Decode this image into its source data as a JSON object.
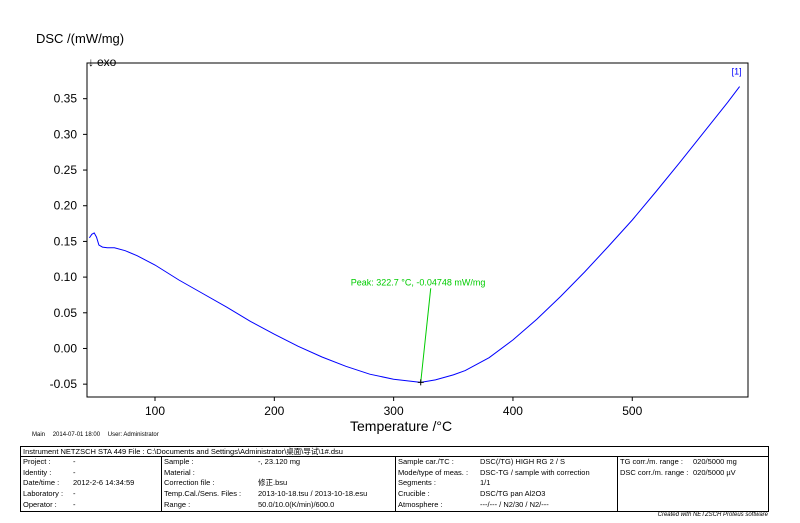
{
  "chart_data": {
    "type": "line",
    "title": "",
    "ylabel": "DSC /(mW/mg)",
    "ylabel_sub": "exo",
    "ylabel_arrow": "↓",
    "xlabel": "Temperature /°C",
    "xlim": [
      43,
      597
    ],
    "ylim": [
      -0.068,
      0.4
    ],
    "x_ticks": [
      100,
      200,
      300,
      400,
      500
    ],
    "x_tick_labels": [
      "100",
      "200",
      "300",
      "400",
      "500"
    ],
    "y_ticks": [
      -0.05,
      0.0,
      0.05,
      0.1,
      0.15,
      0.2,
      0.25,
      0.3,
      0.35
    ],
    "y_tick_labels": [
      "-0.05",
      "0.00",
      "0.05",
      "0.10",
      "0.15",
      "0.20",
      "0.25",
      "0.30",
      "0.35"
    ],
    "grid": false,
    "series": [
      {
        "color": "#0000ff",
        "x": [
          45,
          47,
          49,
          51,
          53,
          56,
          60,
          66,
          75,
          85,
          100,
          120,
          140,
          160,
          180,
          200,
          220,
          240,
          260,
          280,
          300,
          310,
          322.7,
          335,
          350,
          360,
          380,
          400,
          420,
          440,
          460,
          480,
          500,
          520,
          540,
          560,
          580,
          590
        ],
        "y": [
          0.155,
          0.16,
          0.162,
          0.156,
          0.145,
          0.142,
          0.141,
          0.141,
          0.137,
          0.13,
          0.117,
          0.096,
          0.077,
          0.058,
          0.038,
          0.02,
          0.003,
          -0.012,
          -0.025,
          -0.036,
          -0.043,
          -0.045,
          -0.04748,
          -0.044,
          -0.037,
          -0.031,
          -0.013,
          0.012,
          0.041,
          0.073,
          0.107,
          0.143,
          0.18,
          0.22,
          0.261,
          0.303,
          0.345,
          0.367
        ]
      }
    ],
    "end_label": "[1]",
    "annotation": {
      "text": "Peak: 322.7 °C, -0.04748 mW/mg",
      "x": 322.7,
      "y": -0.04748,
      "color": "#00cc00"
    }
  },
  "main_line": {
    "main": "Main",
    "date": "2014-07-01 18:00",
    "user": "User: Administrator"
  },
  "info": {
    "header": "Instrument   NETZSCH STA 449   File : C:\\Documents and Settings\\Administrator\\桌面\\导试\\1#.dsu",
    "col1": [
      {
        "k": "Project :",
        "v": "-"
      },
      {
        "k": "Identity :",
        "v": "-"
      },
      {
        "k": "Date/time :",
        "v": "2012-2-6 14:34:59"
      },
      {
        "k": "Laboratory :",
        "v": "-"
      },
      {
        "k": "Operator :",
        "v": "-"
      }
    ],
    "col2": [
      {
        "k": "Sample :",
        "v": "-, 23.120 mg"
      },
      {
        "k": "Material :",
        "v": ""
      },
      {
        "k": "Correction file :",
        "v": "修正.bsu"
      },
      {
        "k": "Temp.Cal./Sens. Files :",
        "v": "2013-10-18.tsu / 2013-10-18.esu"
      },
      {
        "k": "Range :",
        "v": "50.0/10.0(K/min)/600.0"
      }
    ],
    "col3": [
      {
        "k": "Sample car./TC :",
        "v": "DSC(/TG) HIGH RG 2 / S"
      },
      {
        "k": "Mode/type of meas. :",
        "v": "DSC-TG / sample with correction"
      },
      {
        "k": "Segments :",
        "v": "1/1"
      },
      {
        "k": "Crucible :",
        "v": "DSC/TG pan Al2O3"
      },
      {
        "k": "Atmosphere :",
        "v": "---/--- / N2/30 / N2/---"
      }
    ],
    "col4": [
      {
        "k": "TG corr./m. range :",
        "v": "020/5000 mg"
      },
      {
        "k": "DSC corr./m. range :",
        "v": "020/5000 µV"
      }
    ]
  },
  "credit": "Created with NETZSCH Proteus software"
}
